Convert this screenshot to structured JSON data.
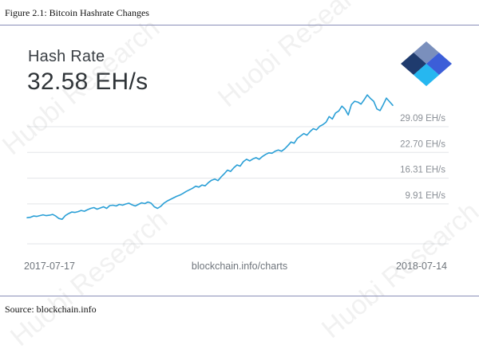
{
  "figure_caption": "Figure 2.1: Bitcoin Hashrate Changes",
  "source": "Source: blockchain.info",
  "watermark_text": "Huobi Research",
  "card": {
    "title": "Hash Rate",
    "current_value": "32.58 EH/s",
    "logo_icon": "blockchain-logo-icon",
    "colors": {
      "line": "#2a9fd6",
      "grid": "#e3e5e8",
      "logo_dark": "#1f3b6e",
      "logo_light": "#27b7f0",
      "logo_mid": "#3c5ed8"
    }
  },
  "chart_data": {
    "type": "line",
    "title": "Hash Rate",
    "xlabel": "",
    "ylabel": "",
    "x_start_label": "2017-07-17",
    "x_end_label": "2018-07-14",
    "footer_label": "blockchain.info/charts",
    "ylim": [
      0,
      38
    ],
    "grid": true,
    "y_ticks": [
      {
        "value": 9.91,
        "label": "9.91 EH/s"
      },
      {
        "value": 16.31,
        "label": "16.31 EH/s"
      },
      {
        "value": 22.7,
        "label": "22.70 EH/s"
      },
      {
        "value": 29.09,
        "label": "29.09 EH/s"
      }
    ],
    "series": [
      {
        "values": [
          6.5,
          6.6,
          6.9,
          6.8,
          7.0,
          7.2,
          7.0,
          7.1,
          7.3,
          6.9,
          6.3,
          6.1,
          7.0,
          7.5,
          7.9,
          7.8,
          8.0,
          8.3,
          8.1,
          8.5,
          8.8,
          9.0,
          8.6,
          8.9,
          9.2,
          8.8,
          9.5,
          9.6,
          9.4,
          9.8,
          9.6,
          9.9,
          10.1,
          9.7,
          9.4,
          9.8,
          10.2,
          10.0,
          10.4,
          10.1,
          9.2,
          8.8,
          9.3,
          10.1,
          10.6,
          11.0,
          11.4,
          11.8,
          12.1,
          12.5,
          13.0,
          13.4,
          13.8,
          14.3,
          14.1,
          14.6,
          14.4,
          15.2,
          15.8,
          16.1,
          15.7,
          16.6,
          17.4,
          18.3,
          18.0,
          18.9,
          19.6,
          19.3,
          20.4,
          21.0,
          20.6,
          21.1,
          21.4,
          21.0,
          21.7,
          22.2,
          22.6,
          22.5,
          23.0,
          23.3,
          23.0,
          23.6,
          24.4,
          25.3,
          25.0,
          26.2,
          26.8,
          27.4,
          27.0,
          27.9,
          28.6,
          28.3,
          29.2,
          29.6,
          30.2,
          31.6,
          31.0,
          32.5,
          33.0,
          34.2,
          33.4,
          32.0,
          34.6,
          35.4,
          35.2,
          34.7,
          35.8,
          37.0,
          36.1,
          35.4,
          33.5,
          33.1,
          34.6,
          36.2,
          35.3,
          34.4
        ]
      }
    ]
  }
}
